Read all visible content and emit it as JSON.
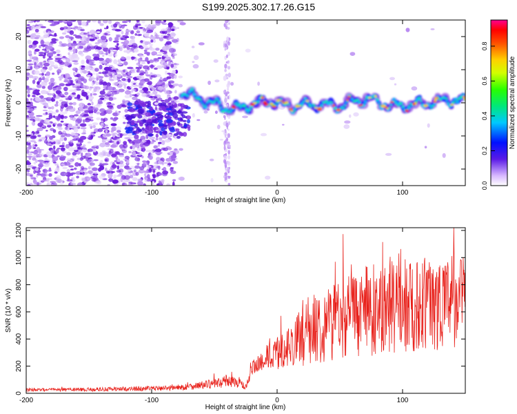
{
  "page": {
    "title": "S199.2025.302.17.26.G15"
  },
  "chart_data": [
    {
      "type": "heatmap",
      "title": "S199.2025.302.17.26.G15",
      "xlabel": "Height of straight line (km)",
      "ylabel": "Frequency (Hz)",
      "xlim": [
        -200,
        150
      ],
      "ylim": [
        -25,
        25
      ],
      "x_ticks": [
        -200,
        -100,
        0,
        100
      ],
      "x_tick_labels": [
        "-200",
        "-100",
        "0",
        "100"
      ],
      "y_ticks": [
        -20,
        -10,
        0,
        10,
        20
      ],
      "y_tick_labels": [
        "-20",
        "-10",
        "0",
        "10",
        "20"
      ],
      "colorbar": {
        "label": "Normalized spectral amplitude",
        "range": [
          0,
          0.95
        ],
        "ticks": [
          0.0,
          0.2,
          0.4,
          0.6,
          0.8
        ],
        "tick_labels": [
          "0.0",
          "0.2",
          "0.4",
          "0.6",
          "0.8"
        ]
      },
      "ridge": {
        "description_x": [
          -75,
          -60,
          -45,
          -35,
          -20,
          -5,
          10,
          30,
          50,
          60,
          75,
          90,
          110,
          130,
          145,
          150
        ],
        "frequency": [
          3,
          1,
          -1,
          -2,
          -0.5,
          0.5,
          -1,
          -0.5,
          -1,
          0.5,
          1,
          -1,
          -0.5,
          0.5,
          1,
          0
        ]
      },
      "noise_region_x": [
        -200,
        -80
      ],
      "colors": {
        "scatter_base": "#7a2be0",
        "noise_light": "#c8aaf0"
      }
    },
    {
      "type": "line",
      "xlabel": "Height of straight line (km)",
      "ylabel": "SNR (10 * v/v)",
      "xlim": [
        -200,
        150
      ],
      "ylim": [
        0,
        1220
      ],
      "x_ticks": [
        -200,
        -100,
        0,
        100
      ],
      "x_tick_labels": [
        "-200",
        "-100",
        "0",
        "100"
      ],
      "y_ticks": [
        0,
        200,
        400,
        600,
        800,
        1000,
        1200
      ],
      "y_tick_labels": [
        "0",
        "200",
        "400",
        "600",
        "800",
        "1000",
        "1200"
      ],
      "series": [
        {
          "name": "SNR",
          "color": "#e8201a",
          "envelope_x": [
            -200,
            -150,
            -100,
            -75,
            -50,
            -40,
            -30,
            -25,
            -20,
            -10,
            0,
            10,
            20,
            30,
            40,
            50,
            60,
            70,
            80,
            90,
            100,
            110,
            120,
            130,
            140,
            150
          ],
          "mean": [
            25,
            28,
            35,
            45,
            70,
            90,
            80,
            40,
            170,
            260,
            290,
            350,
            420,
            480,
            520,
            560,
            580,
            600,
            620,
            640,
            640,
            650,
            660,
            670,
            680,
            690
          ],
          "spread": [
            12,
            14,
            18,
            22,
            35,
            45,
            40,
            20,
            60,
            90,
            120,
            150,
            220,
            260,
            290,
            300,
            320,
            330,
            340,
            350,
            350,
            350,
            350,
            350,
            350,
            350
          ]
        }
      ]
    }
  ]
}
